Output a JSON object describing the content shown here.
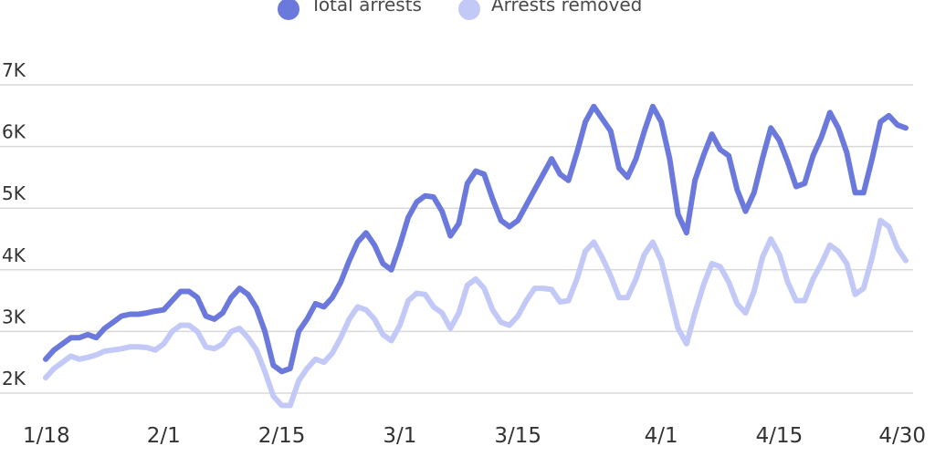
{
  "legend": {
    "items": [
      {
        "label": "Total arrests",
        "color": "#6b79dc"
      },
      {
        "label": "Arrests removed",
        "color": "#c3c9f7"
      }
    ]
  },
  "chart_data": {
    "type": "line",
    "title": "",
    "xlabel": "",
    "ylabel": "",
    "ylim": [
      1500,
      7000
    ],
    "y_ticks": [
      {
        "value": 2000,
        "label": "2K"
      },
      {
        "value": 3000,
        "label": "3K"
      },
      {
        "value": 4000,
        "label": "4K"
      },
      {
        "value": 5000,
        "label": "5K"
      },
      {
        "value": 6000,
        "label": "6K"
      },
      {
        "value": 7000,
        "label": "7K"
      }
    ],
    "x_ticks": [
      {
        "date": "2025-01-18",
        "label": "1/18"
      },
      {
        "date": "2025-02-01",
        "label": "2/1"
      },
      {
        "date": "2025-02-15",
        "label": "2/15"
      },
      {
        "date": "2025-03-01",
        "label": "3/1"
      },
      {
        "date": "2025-03-15",
        "label": "3/15"
      },
      {
        "date": "2025-04-01",
        "label": "4/1"
      },
      {
        "date": "2025-04-15",
        "label": "4/15"
      },
      {
        "date": "2025-04-30",
        "label": "4/30"
      }
    ],
    "grid": true,
    "legend_position": "top-center",
    "x": [
      "2025-01-18",
      "2025-01-19",
      "2025-01-20",
      "2025-01-21",
      "2025-01-22",
      "2025-01-23",
      "2025-01-24",
      "2025-01-25",
      "2025-01-26",
      "2025-01-27",
      "2025-01-28",
      "2025-01-29",
      "2025-01-30",
      "2025-01-31",
      "2025-02-01",
      "2025-02-02",
      "2025-02-03",
      "2025-02-04",
      "2025-02-05",
      "2025-02-06",
      "2025-02-07",
      "2025-02-08",
      "2025-02-09",
      "2025-02-10",
      "2025-02-11",
      "2025-02-12",
      "2025-02-13",
      "2025-02-14",
      "2025-02-15",
      "2025-02-16",
      "2025-02-17",
      "2025-02-18",
      "2025-02-19",
      "2025-02-20",
      "2025-02-21",
      "2025-02-22",
      "2025-02-23",
      "2025-02-24",
      "2025-02-25",
      "2025-02-26",
      "2025-02-27",
      "2025-02-28",
      "2025-03-01",
      "2025-03-02",
      "2025-03-03",
      "2025-03-04",
      "2025-03-05",
      "2025-03-06",
      "2025-03-07",
      "2025-03-08",
      "2025-03-09",
      "2025-03-10",
      "2025-03-11",
      "2025-03-12",
      "2025-03-13",
      "2025-03-14",
      "2025-03-15",
      "2025-03-16",
      "2025-03-17",
      "2025-03-18",
      "2025-03-19",
      "2025-03-20",
      "2025-03-21",
      "2025-03-22",
      "2025-03-23",
      "2025-03-24",
      "2025-03-25",
      "2025-03-26",
      "2025-03-27",
      "2025-03-28",
      "2025-03-29",
      "2025-03-30",
      "2025-03-31",
      "2025-04-01",
      "2025-04-02",
      "2025-04-03",
      "2025-04-04",
      "2025-04-05",
      "2025-04-06",
      "2025-04-07",
      "2025-04-08",
      "2025-04-09",
      "2025-04-10",
      "2025-04-11",
      "2025-04-12",
      "2025-04-13",
      "2025-04-14",
      "2025-04-15",
      "2025-04-16",
      "2025-04-17",
      "2025-04-18",
      "2025-04-19",
      "2025-04-20",
      "2025-04-21",
      "2025-04-22",
      "2025-04-23",
      "2025-04-24",
      "2025-04-25",
      "2025-04-26",
      "2025-04-27",
      "2025-04-28",
      "2025-04-29",
      "2025-04-30"
    ],
    "series": [
      {
        "name": "Total arrests",
        "color": "#6b79dc",
        "values": [
          2550,
          2700,
          2800,
          2900,
          2900,
          2950,
          2900,
          3050,
          3150,
          3250,
          3280,
          3280,
          3300,
          3330,
          3350,
          3500,
          3650,
          3650,
          3550,
          3250,
          3200,
          3300,
          3550,
          3700,
          3600,
          3380,
          3000,
          2450,
          2350,
          2400,
          3000,
          3200,
          3450,
          3400,
          3550,
          3800,
          4150,
          4450,
          4600,
          4400,
          4100,
          4000,
          4400,
          4850,
          5100,
          5200,
          5180,
          4950,
          4550,
          4750,
          5400,
          5600,
          5550,
          5150,
          4800,
          4700,
          4800,
          5050,
          5300,
          5550,
          5800,
          5550,
          5450,
          5900,
          6400,
          6650,
          6450,
          6250,
          5650,
          5500,
          5800,
          6250,
          6650,
          6400,
          5800,
          4900,
          4600,
          5450,
          5850,
          6200,
          5950,
          5850,
          5300,
          4950,
          5250,
          5800,
          6300,
          6100,
          5750,
          5350,
          5400,
          5850,
          6150,
          6550,
          6300,
          5900,
          5250,
          5250,
          5800,
          6400,
          6500,
          6350,
          6300
        ]
      },
      {
        "name": "Arrests removed",
        "color": "#c3c9f7",
        "values": [
          2250,
          2400,
          2500,
          2600,
          2550,
          2580,
          2620,
          2680,
          2700,
          2720,
          2750,
          2750,
          2740,
          2700,
          2800,
          3000,
          3100,
          3100,
          3000,
          2750,
          2720,
          2800,
          3000,
          3050,
          2900,
          2700,
          2350,
          1950,
          1800,
          1800,
          2200,
          2400,
          2550,
          2500,
          2650,
          2900,
          3200,
          3400,
          3350,
          3200,
          2950,
          2850,
          3100,
          3500,
          3620,
          3600,
          3400,
          3300,
          3050,
          3300,
          3750,
          3850,
          3700,
          3350,
          3150,
          3100,
          3250,
          3500,
          3700,
          3700,
          3680,
          3480,
          3500,
          3850,
          4300,
          4450,
          4200,
          3900,
          3550,
          3550,
          3850,
          4250,
          4450,
          4150,
          3600,
          3050,
          2800,
          3300,
          3750,
          4100,
          4050,
          3800,
          3450,
          3300,
          3650,
          4200,
          4500,
          4250,
          3800,
          3500,
          3500,
          3850,
          4100,
          4400,
          4300,
          4100,
          3600,
          3700,
          4200,
          4800,
          4700,
          4350,
          4150
        ]
      }
    ]
  }
}
